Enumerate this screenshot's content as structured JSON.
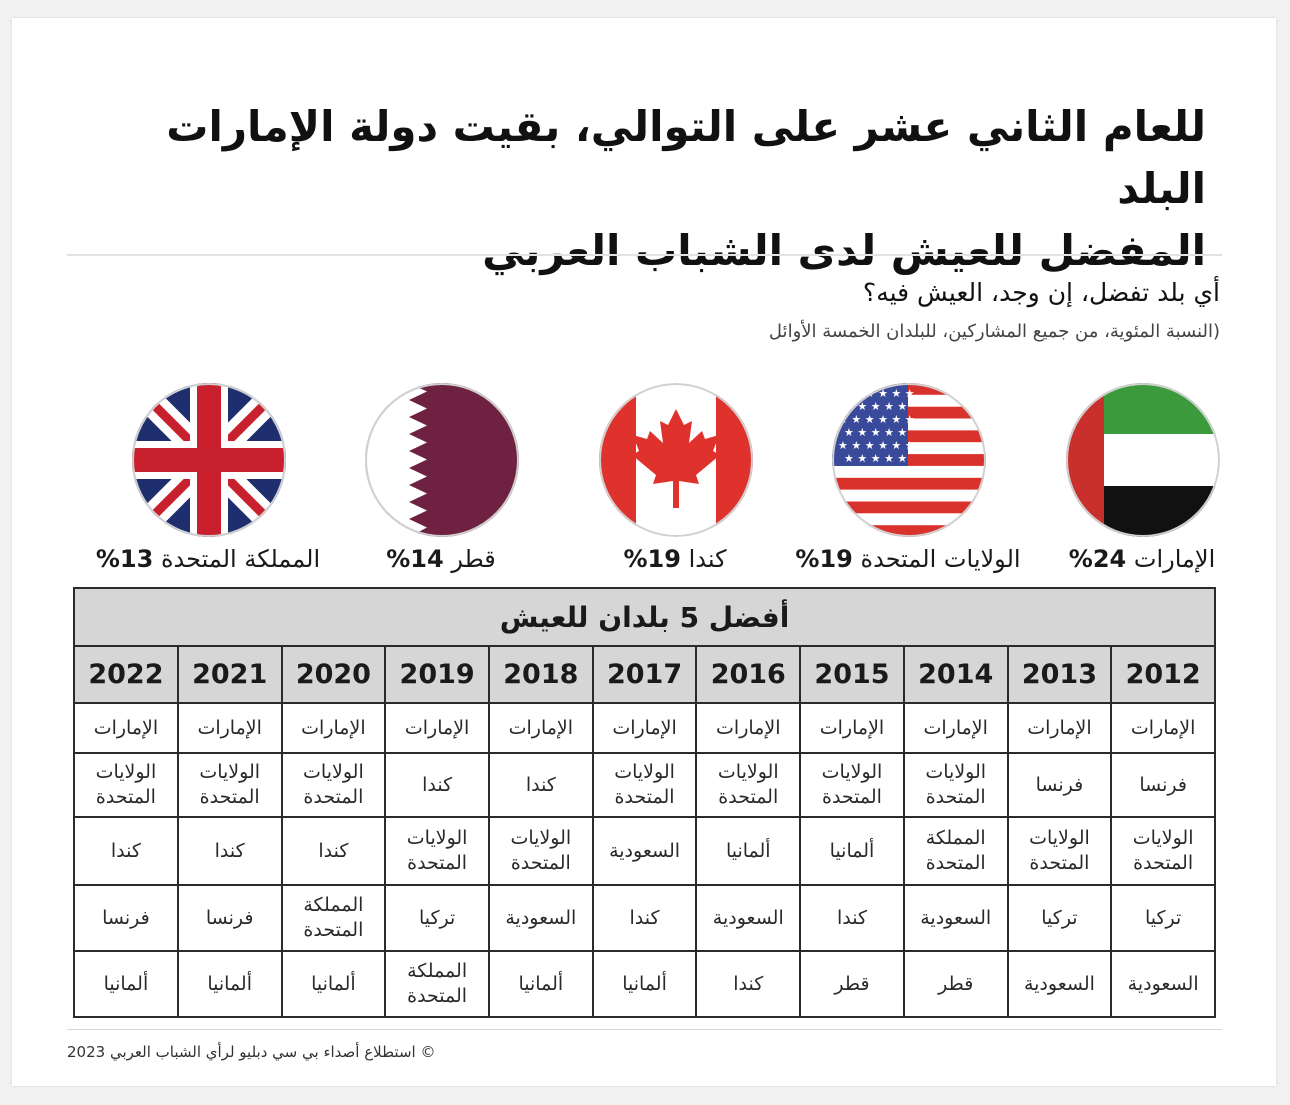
{
  "title_line1": "للعام الثاني عشر على التوالي، بقيت دولة الإمارات البلد",
  "title_line2": "المفضل للعيش لدى الشباب العربي",
  "question": "أي بلد تفضل، إن وجد، العيش فيه؟",
  "subtitle": "(النسبة المئوية، من جميع المشاركين، للبلدان الخمسة الأوائل",
  "flags": [
    {
      "country": "الإمارات",
      "percent": "24%",
      "icon": "uae-flag-icon"
    },
    {
      "country": "الولايات المتحدة",
      "percent": "19%",
      "icon": "usa-flag-icon"
    },
    {
      "country": "كندا",
      "percent": "19%",
      "icon": "canada-flag-icon"
    },
    {
      "country": "قطر",
      "percent": "14%",
      "icon": "qatar-flag-icon"
    },
    {
      "country": "المملكة المتحدة",
      "percent": "13%",
      "icon": "uk-flag-icon"
    }
  ],
  "chart_data": {
    "type": "table",
    "title": "أفضل 5 بلدان للعيش",
    "years": [
      "2012",
      "2013",
      "2014",
      "2015",
      "2016",
      "2017",
      "2018",
      "2019",
      "2020",
      "2021",
      "2022"
    ],
    "rows": [
      [
        "الإمارات",
        "الإمارات",
        "الإمارات",
        "الإمارات",
        "الإمارات",
        "الإمارات",
        "الإمارات",
        "الإمارات",
        "الإمارات",
        "الإمارات",
        "الإمارات"
      ],
      [
        "فرنسا",
        "فرنسا",
        "الولايات المتحدة",
        "الولايات المتحدة",
        "الولايات المتحدة",
        "الولايات المتحدة",
        "كندا",
        "كندا",
        "الولايات المتحدة",
        "الولايات المتحدة",
        "الولايات المتحدة"
      ],
      [
        "الولايات المتحدة",
        "الولايات المتحدة",
        "المملكة المتحدة",
        "ألمانيا",
        "ألمانيا",
        "السعودية",
        "الولايات المتحدة",
        "الولايات المتحدة",
        "كندا",
        "كندا",
        "كندا"
      ],
      [
        "تركيا",
        "تركيا",
        "السعودية",
        "كندا",
        "السعودية",
        "كندا",
        "السعودية",
        "تركيا",
        "المملكة المتحدة",
        "فرنسا",
        "فرنسا"
      ],
      [
        "السعودية",
        "السعودية",
        "قطر",
        "قطر",
        "كندا",
        "ألمانيا",
        "ألمانيا",
        "المملكة المتحدة",
        "ألمانيا",
        "ألمانيا",
        "ألمانيا"
      ]
    ]
  },
  "footer": {
    "copyright": "©",
    "text": "استطلاع أصداء بي سي دبليو لرأي الشباب العربي",
    "year": "2023"
  },
  "colors": {
    "header_bg": "#d6d6d6",
    "border": "#2b2b2b",
    "uae_green": "#3b9a3b",
    "uae_red": "#c9302c",
    "usa_red": "#d9322c",
    "usa_blue": "#3a4a9a",
    "canada_red": "#e0322c",
    "qatar_maroon": "#6e2140",
    "uk_blue": "#1f2e6e",
    "uk_red": "#c8202f"
  }
}
